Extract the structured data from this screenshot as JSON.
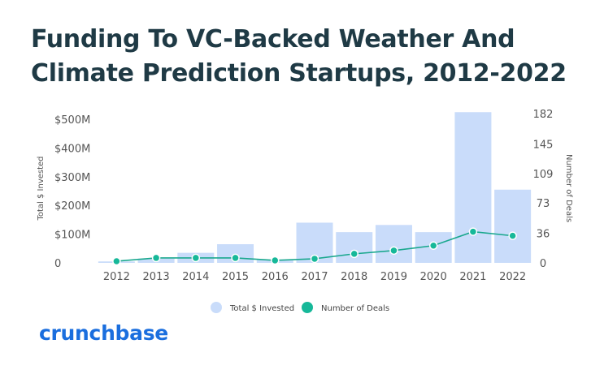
{
  "title_line1": "Funding To VC-Backed Weather And",
  "title_line2": "Climate Prediction Startups, 2012-2022",
  "brand": "crunchbase",
  "colors": {
    "bar": "#c9dcfa",
    "line": "#1aa88e",
    "point": "#16b899",
    "title": "#1f3a45",
    "brand": "#1a6ede"
  },
  "chart_data": {
    "type": "bar",
    "categories": [
      "2012",
      "2013",
      "2014",
      "2015",
      "2016",
      "2017",
      "2018",
      "2019",
      "2020",
      "2021",
      "2022"
    ],
    "series": [
      {
        "name": "Total $ Invested",
        "type": "bar",
        "axis": "left",
        "values": [
          5,
          15,
          35,
          65,
          12,
          140,
          107,
          132,
          107,
          525,
          255
        ]
      },
      {
        "name": "Number of Deals",
        "type": "line",
        "axis": "right",
        "values": [
          2,
          6,
          6,
          6,
          3,
          5,
          11,
          15,
          21,
          38,
          33
        ]
      }
    ],
    "ylabel": "Total $ Invested",
    "y2label": "Number of Deals",
    "ylim": [
      0,
      520
    ],
    "y2lim": [
      0,
      182
    ],
    "yticks": [
      0,
      100,
      200,
      300,
      400,
      500
    ],
    "yticklabels": [
      "0",
      "$100M",
      "$200M",
      "$300M",
      "$400M",
      "$500M"
    ],
    "y2ticks": [
      0,
      36,
      73,
      109,
      145,
      182
    ],
    "y2ticklabels": [
      "0",
      "36",
      "73",
      "109",
      "145",
      "182"
    ],
    "legend": [
      "Total $ Invested",
      "Number of Deals"
    ],
    "legend_position": "bottom",
    "grid": false
  }
}
